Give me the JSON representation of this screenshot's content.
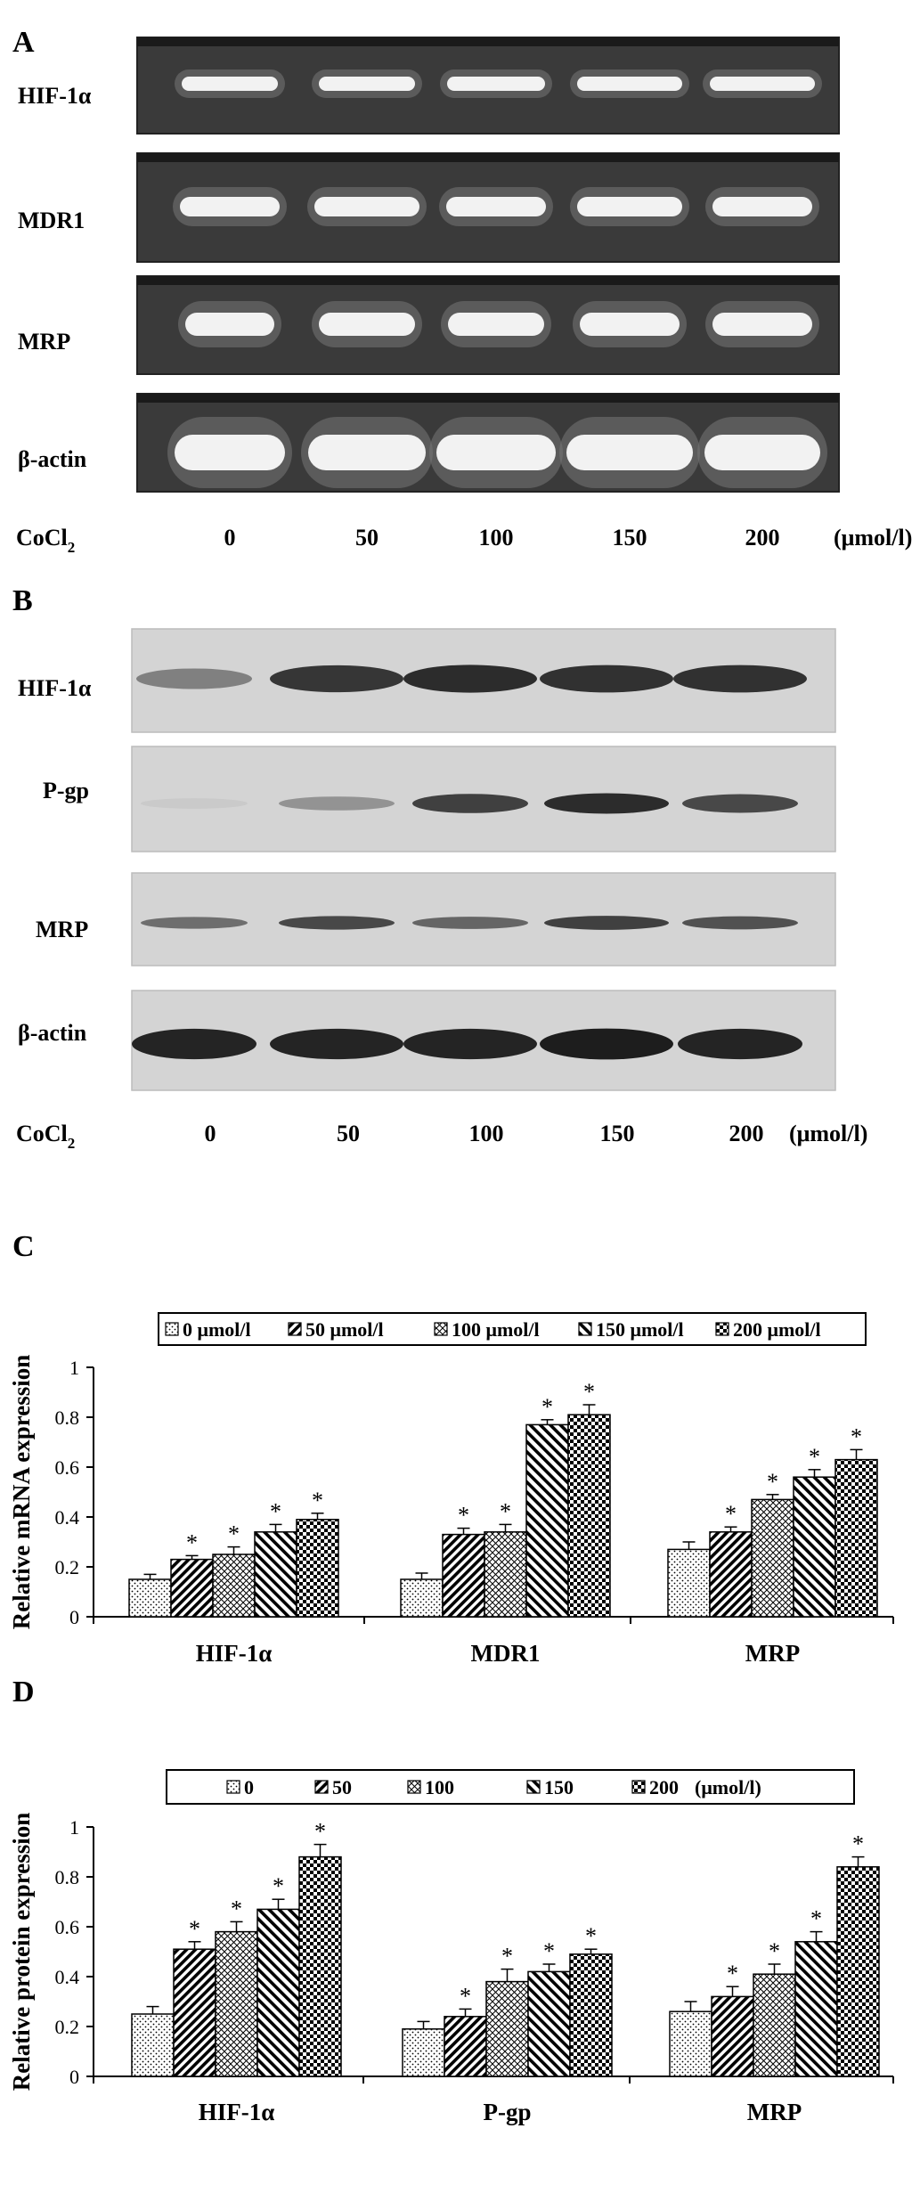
{
  "panel_a": {
    "letter": "A",
    "rows": [
      "HIF-1α",
      "MDR1",
      "MRP",
      "β-actin"
    ],
    "treatment_label": "CoCl",
    "treatment_subscript": "2",
    "lanes": [
      "0",
      "50",
      "100",
      "150",
      "200"
    ],
    "unit": "(μmol/l)"
  },
  "panel_b": {
    "letter": "B",
    "rows": [
      "HIF-1α",
      "P-gp",
      "MRP",
      "β-actin"
    ],
    "band_intensity": [
      [
        0.45,
        0.85,
        0.9,
        0.88,
        0.88
      ],
      [
        0.05,
        0.35,
        0.8,
        0.9,
        0.75
      ],
      [
        0.55,
        0.75,
        0.6,
        0.8,
        0.7
      ],
      [
        0.95,
        0.95,
        0.95,
        0.98,
        0.95
      ]
    ],
    "treatment_label": "CoCl",
    "treatment_subscript": "2",
    "lanes": [
      "0",
      "50",
      "100",
      "150",
      "200"
    ],
    "unit": "(μmol/l)"
  },
  "chart_data": [
    {
      "type": "bar",
      "panel": "C",
      "ylabel": "Relative mRNA expression",
      "ylim": [
        0,
        1
      ],
      "yticks": [
        "0",
        "0.2",
        "0.4",
        "0.6",
        "0.8",
        "1"
      ],
      "categories": [
        "HIF-1α",
        "MDR1",
        "MRP"
      ],
      "legend": [
        "0 μmol/l",
        "50 μmol/l",
        "100 μmol/l",
        "150 μmol/l",
        "200 μmol/l"
      ],
      "legend_placement": "top",
      "series": [
        {
          "name": "0 μmol/l",
          "values": [
            0.15,
            0.15,
            0.27
          ],
          "errors": [
            0.02,
            0.025,
            0.03
          ],
          "star": [
            false,
            false,
            false
          ]
        },
        {
          "name": "50 μmol/l",
          "values": [
            0.23,
            0.33,
            0.34
          ],
          "errors": [
            0.015,
            0.025,
            0.02
          ],
          "star": [
            true,
            true,
            true
          ]
        },
        {
          "name": "100 μmol/l",
          "values": [
            0.25,
            0.34,
            0.47
          ],
          "errors": [
            0.03,
            0.03,
            0.02
          ],
          "star": [
            true,
            true,
            true
          ]
        },
        {
          "name": "150 μmol/l",
          "values": [
            0.34,
            0.77,
            0.56
          ],
          "errors": [
            0.03,
            0.02,
            0.03
          ],
          "star": [
            true,
            true,
            true
          ]
        },
        {
          "name": "200 μmol/l",
          "values": [
            0.39,
            0.81,
            0.63
          ],
          "errors": [
            0.025,
            0.04,
            0.04
          ],
          "star": [
            true,
            true,
            true
          ]
        }
      ],
      "significance_marker": "*",
      "grid": false
    },
    {
      "type": "bar",
      "panel": "D",
      "ylabel": "Relative protein expression",
      "ylim": [
        0,
        1
      ],
      "yticks": [
        "0",
        "0.2",
        "0.4",
        "0.6",
        "0.8",
        "1"
      ],
      "categories": [
        "HIF-1α",
        "P-gp",
        "MRP"
      ],
      "legend": [
        "0",
        "50",
        "100",
        "150",
        "200"
      ],
      "legend_unit": "(μmol/l)",
      "legend_placement": "top",
      "series": [
        {
          "name": "0",
          "values": [
            0.25,
            0.19,
            0.26
          ],
          "errors": [
            0.03,
            0.03,
            0.04
          ],
          "star": [
            false,
            false,
            false
          ]
        },
        {
          "name": "50",
          "values": [
            0.51,
            0.24,
            0.32
          ],
          "errors": [
            0.03,
            0.03,
            0.04
          ],
          "star": [
            true,
            true,
            true
          ]
        },
        {
          "name": "100",
          "values": [
            0.58,
            0.38,
            0.41
          ],
          "errors": [
            0.04,
            0.05,
            0.04
          ],
          "star": [
            true,
            true,
            true
          ]
        },
        {
          "name": "150",
          "values": [
            0.67,
            0.42,
            0.54
          ],
          "errors": [
            0.04,
            0.03,
            0.04
          ],
          "star": [
            true,
            true,
            true
          ]
        },
        {
          "name": "200",
          "values": [
            0.88,
            0.49,
            0.84
          ],
          "errors": [
            0.05,
            0.02,
            0.04
          ],
          "star": [
            true,
            true,
            true
          ]
        }
      ],
      "significance_marker": "*",
      "grid": false
    }
  ],
  "panel_c_letter": "C",
  "panel_d_letter": "D"
}
